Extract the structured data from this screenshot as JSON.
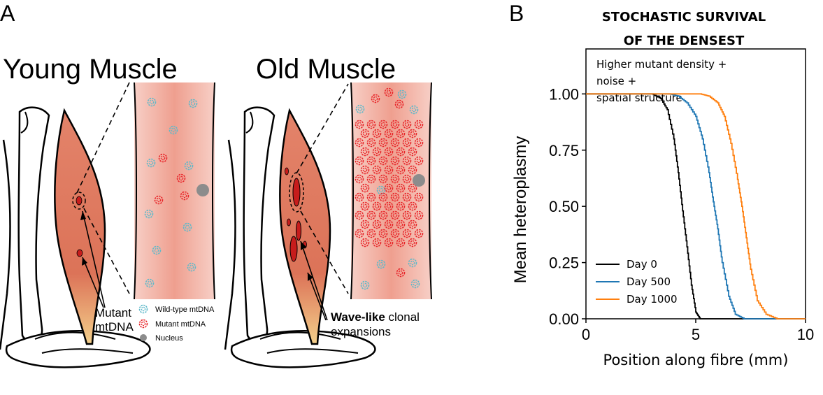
{
  "panel_a": {
    "label": "A",
    "young": {
      "title": "Young Muscle",
      "annotation_line1": "Mutant",
      "annotation_line2": "mtDNA"
    },
    "old": {
      "title": "Old Muscle",
      "annotation_bold": "Wave-like",
      "annotation_rest": " clonal",
      "annotation_line2": "expansions"
    },
    "legend": {
      "wildtype": "Wild-type mtDNA",
      "mutant": "Mutant mtDNA",
      "nucleus": "Nucleus"
    },
    "colors": {
      "muscle": "#e07a5f",
      "fibre": "#f2b3a6",
      "wildtype": "#5fb9c9",
      "mutant": "#e8262a",
      "nucleus": "#8c8c8c",
      "tendon": "#f5d58a"
    }
  },
  "panel_b": {
    "label": "B",
    "title_line1": "STOCHASTIC SURVIVAL",
    "title_line2": "OF THE DENSEST",
    "annotation_lines": [
      "Higher mutant density +",
      "noise +",
      "spatial structure"
    ]
  },
  "chart_data": {
    "type": "line",
    "xlabel": "Position along fibre (mm)",
    "ylabel": "Mean heteroplasmy",
    "xlim": [
      0,
      10
    ],
    "ylim": [
      0,
      1.2
    ],
    "xticks": [
      0,
      5,
      10
    ],
    "yticks": [
      "0.00",
      "0.25",
      "0.50",
      "0.75",
      "1.00"
    ],
    "legend_position": "bottom-left",
    "grid": false,
    "series": [
      {
        "name": "Day 0",
        "color": "#000000",
        "x": [
          0,
          3.0,
          3.4,
          3.7,
          4.0,
          4.2,
          4.4,
          4.6,
          4.8,
          5.0,
          5.2,
          5.5,
          10
        ],
        "y": [
          1.0,
          1.0,
          0.98,
          0.93,
          0.8,
          0.65,
          0.48,
          0.32,
          0.15,
          0.03,
          0.0,
          0.0,
          0.0
        ]
      },
      {
        "name": "Day 500",
        "color": "#1f77b4",
        "x": [
          0,
          3.8,
          4.2,
          4.6,
          5.0,
          5.3,
          5.6,
          5.8,
          6.0,
          6.2,
          6.5,
          6.8,
          7.2,
          10
        ],
        "y": [
          1.0,
          1.0,
          0.99,
          0.96,
          0.9,
          0.8,
          0.65,
          0.52,
          0.4,
          0.25,
          0.1,
          0.02,
          0.0,
          0.0
        ]
      },
      {
        "name": "Day 1000",
        "color": "#ff7f0e",
        "x": [
          0,
          5.2,
          5.6,
          6.0,
          6.3,
          6.6,
          6.9,
          7.1,
          7.3,
          7.5,
          7.8,
          8.2,
          8.7,
          10
        ],
        "y": [
          1.0,
          1.0,
          0.99,
          0.96,
          0.9,
          0.78,
          0.62,
          0.5,
          0.36,
          0.22,
          0.08,
          0.02,
          0.0,
          0.0
        ]
      }
    ]
  }
}
